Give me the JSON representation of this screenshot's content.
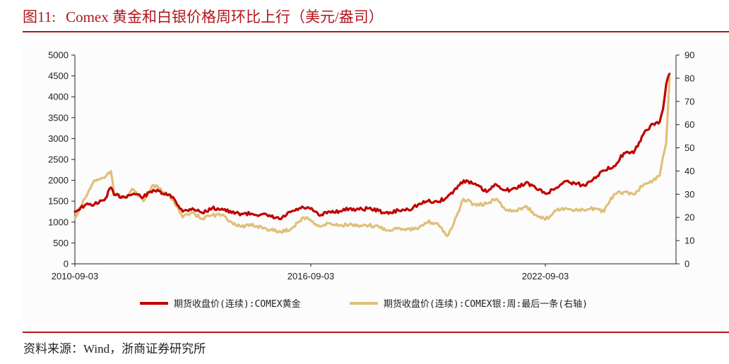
{
  "header": {
    "figure_number": "图11:",
    "title": "Comex 黄金和白银价格周环比上行（美元/盎司）"
  },
  "footer": {
    "source": "资料来源：Wind，浙商证券研究所"
  },
  "legend": {
    "gold_label": "期货收盘价(连续):COMEX黄金",
    "silver_label": "期货收盘价(连续):COMEX银:周:最后一条(右轴)"
  },
  "colors": {
    "gold": "#c00000",
    "silver": "#dfc07a",
    "accent": "#b3151c",
    "axis": "#222222"
  },
  "chart_data": {
    "type": "line",
    "title": "Comex 黄金和白银价格周环比上行（美元/盎司）",
    "xlabel": "",
    "ylabel": "美元/盎司",
    "x_tick_labels": [
      "2010-09-03",
      "2016-09-03",
      "2022-09-03"
    ],
    "left_axis": {
      "ylim": [
        0,
        5000
      ],
      "ticks": [
        0,
        500,
        1000,
        1500,
        2000,
        2500,
        3000,
        3500,
        4000,
        4500,
        5000
      ]
    },
    "right_axis": {
      "ylim": [
        0,
        90
      ],
      "ticks": [
        0,
        10,
        20,
        30,
        40,
        50,
        60,
        70,
        80,
        90
      ]
    },
    "grid": false,
    "legend_position": "bottom",
    "x": [
      "2010-09",
      "2010-12",
      "2011-03",
      "2011-06",
      "2011-08",
      "2011-09",
      "2011-12",
      "2012-03",
      "2012-06",
      "2012-09",
      "2012-12",
      "2013-03",
      "2013-06",
      "2013-09",
      "2013-12",
      "2014-03",
      "2014-06",
      "2014-09",
      "2014-12",
      "2015-03",
      "2015-06",
      "2015-09",
      "2015-12",
      "2016-03",
      "2016-07",
      "2016-09",
      "2016-12",
      "2017-03",
      "2017-06",
      "2017-09",
      "2017-12",
      "2018-03",
      "2018-06",
      "2018-09",
      "2018-12",
      "2019-03",
      "2019-06",
      "2019-09",
      "2019-12",
      "2020-03",
      "2020-05",
      "2020-08",
      "2020-12",
      "2021-03",
      "2021-06",
      "2021-09",
      "2021-12",
      "2022-03",
      "2022-06",
      "2022-09",
      "2022-12",
      "2023-03",
      "2023-06",
      "2023-09",
      "2023-12",
      "2024-03",
      "2024-06",
      "2024-09",
      "2024-12",
      "2025-03",
      "2025-06",
      "2025-08",
      "2025-09",
      "2025-10",
      "2025-11"
    ],
    "series": [
      {
        "name": "期货收盘价(连续):COMEX黄金",
        "axis": "left",
        "color": "#c00000",
        "values": [
          1250,
          1400,
          1430,
          1520,
          1830,
          1650,
          1600,
          1680,
          1600,
          1770,
          1680,
          1600,
          1250,
          1330,
          1220,
          1330,
          1320,
          1220,
          1200,
          1200,
          1180,
          1130,
          1070,
          1240,
          1350,
          1320,
          1150,
          1250,
          1260,
          1320,
          1300,
          1330,
          1270,
          1200,
          1280,
          1300,
          1410,
          1500,
          1480,
          1600,
          1750,
          2000,
          1880,
          1720,
          1900,
          1760,
          1800,
          1950,
          1820,
          1680,
          1800,
          1980,
          1930,
          1870,
          2070,
          2230,
          2340,
          2650,
          2650,
          3100,
          3350,
          3400,
          3700,
          4300,
          4550
        ]
      },
      {
        "name": "期货收盘价(连续):COMEX银:周:最后一条(右轴)",
        "axis": "right",
        "color": "#dfc07a",
        "values": [
          19.5,
          28,
          36,
          37,
          40,
          30,
          29,
          32,
          27,
          34,
          31,
          28,
          20,
          22,
          19.5,
          21,
          21,
          18,
          16,
          16.5,
          16,
          14.5,
          13.8,
          15,
          20,
          19,
          16,
          17.5,
          16.5,
          17,
          16,
          16.5,
          16,
          14.5,
          15.5,
          15,
          15,
          18,
          17.5,
          12,
          17.5,
          28,
          25,
          26,
          28,
          23,
          23,
          25,
          21,
          19,
          23,
          24,
          23,
          23,
          24,
          22.5,
          30,
          31,
          30,
          34,
          36,
          38,
          46,
          52,
          80
        ]
      }
    ]
  }
}
